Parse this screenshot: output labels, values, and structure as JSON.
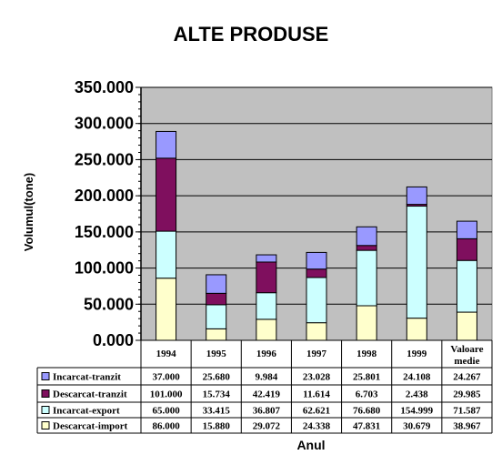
{
  "chart_data": {
    "type": "bar",
    "stacked": true,
    "title": "ALTE PRODUSE",
    "xlabel": "Anul",
    "ylabel": "Volumul(tone)",
    "ylim": [
      0,
      350000
    ],
    "yticks": [
      "0.000",
      "50.000",
      "100.000",
      "150.000",
      "200.000",
      "250.000",
      "300.000",
      "350.000"
    ],
    "grid": true,
    "legend_position": "data-table-left",
    "categories": [
      "1994",
      "1995",
      "1996",
      "1997",
      "1998",
      "1999",
      "Valoare medie"
    ],
    "series": [
      {
        "name": "Incarcat-tranzit",
        "color": "#9999ff",
        "values": [
          37000,
          25680,
          9984,
          23028,
          25801,
          24108,
          24267
        ],
        "labels": [
          "37.000",
          "25.680",
          "9.984",
          "23.028",
          "25.801",
          "24.108",
          "24.267"
        ]
      },
      {
        "name": "Descarcat-tranzit",
        "color": "#7f0f5e",
        "values": [
          101000,
          15734,
          42419,
          11614,
          6703,
          2438,
          29985
        ],
        "labels": [
          "101.000",
          "15.734",
          "42.419",
          "11.614",
          "6.703",
          "2.438",
          "29.985"
        ]
      },
      {
        "name": "Incarcat-export",
        "color": "#ccffff",
        "values": [
          65000,
          33415,
          36807,
          62621,
          76680,
          154999,
          71587
        ],
        "labels": [
          "65.000",
          "33.415",
          "36.807",
          "62.621",
          "76.680",
          "154.999",
          "71.587"
        ]
      },
      {
        "name": "Descarcat-import",
        "color": "#ffffcc",
        "values": [
          86000,
          15880,
          29072,
          24338,
          47831,
          30679,
          38967
        ],
        "labels": [
          "86.000",
          "15.880",
          "29.072",
          "24.338",
          "47.831",
          "30.679",
          "38.967"
        ]
      }
    ],
    "plot_background": "#c0c0c0"
  }
}
